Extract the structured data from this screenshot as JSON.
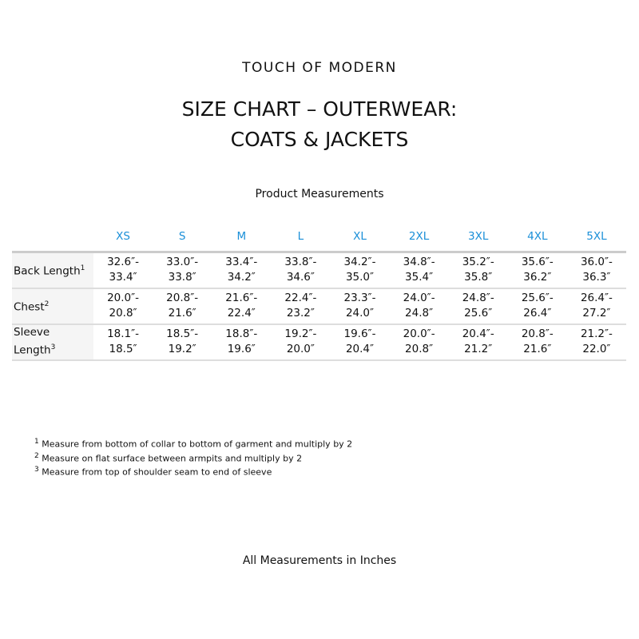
{
  "brand": "TOUCH OF MODERN",
  "title_line1": "SIZE CHART – OUTERWEAR:",
  "title_line2": "COATS & JACKETS",
  "subtitle": "Product Measurements",
  "colors": {
    "header_text": "#1a8fd8",
    "label_bg": "#f5f5f5"
  },
  "sizes": [
    "XS",
    "S",
    "M",
    "L",
    "XL",
    "2XL",
    "3XL",
    "4XL",
    "5XL"
  ],
  "rows": [
    {
      "label": "Back Length",
      "sup": "1",
      "values": [
        [
          "32.6″-",
          "33.4″"
        ],
        [
          "33.0″-",
          "33.8″"
        ],
        [
          "33.4″-",
          "34.2″"
        ],
        [
          "33.8″-",
          "34.6″"
        ],
        [
          "34.2″-",
          "35.0″"
        ],
        [
          "34.8″-",
          "35.4″"
        ],
        [
          "35.2″-",
          "35.8″"
        ],
        [
          "35.6″-",
          "36.2″"
        ],
        [
          "36.0″-",
          "36.3″"
        ]
      ]
    },
    {
      "label": "Chest",
      "sup": "2",
      "values": [
        [
          "20.0″-",
          "20.8″"
        ],
        [
          "20.8″-",
          "21.6″"
        ],
        [
          "21.6″-",
          "22.4″"
        ],
        [
          "22.4″-",
          "23.2″"
        ],
        [
          "23.3″-",
          "24.0″"
        ],
        [
          "24.0″-",
          "24.8″"
        ],
        [
          "24.8″-",
          "25.6″"
        ],
        [
          "25.6″-",
          "26.4″"
        ],
        [
          "26.4″-",
          "27.2″"
        ]
      ]
    },
    {
      "label": "Sleeve Length",
      "sup": "3",
      "values": [
        [
          "18.1″-",
          "18.5″"
        ],
        [
          "18.5″-",
          "19.2″"
        ],
        [
          "18.8″-",
          "19.6″"
        ],
        [
          "19.2″-",
          "20.0″"
        ],
        [
          "19.6″-",
          "20.4″"
        ],
        [
          "20.0″-",
          "20.8″"
        ],
        [
          "20.4″-",
          "21.2″"
        ],
        [
          "20.8″-",
          "21.6″"
        ],
        [
          "21.2″-",
          "22.0″"
        ]
      ]
    }
  ],
  "notes": [
    {
      "sup": "1",
      "text": "Measure from bottom of collar to bottom of garment and multiply by 2"
    },
    {
      "sup": "2",
      "text": "Measure on flat surface between armpits and multiply by 2"
    },
    {
      "sup": "3",
      "text": "Measure from top of shoulder seam to end of sleeve"
    }
  ],
  "footer": "All Measurements in Inches"
}
